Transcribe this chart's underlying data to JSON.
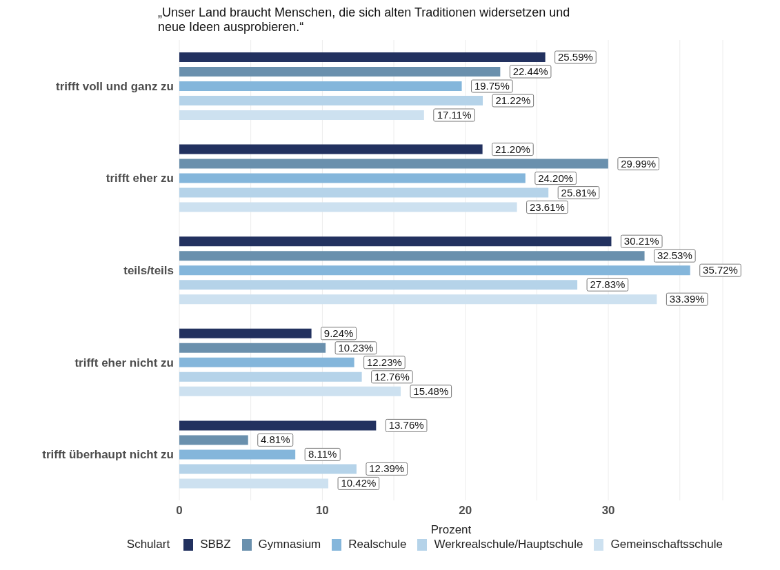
{
  "chart_data": {
    "type": "bar",
    "orientation": "horizontal",
    "title": "„Unser Land braucht Menschen, die sich alten Traditionen widersetzen und neue Ideen ausprobieren.“",
    "xlabel": "Prozent",
    "legend_title": "Schulart",
    "legend": "bottom",
    "grid": "x",
    "categories": [
      "trifft voll und ganz zu",
      "trifft eher zu",
      "teils/teils",
      "trifft eher nicht zu",
      "trifft überhaupt nicht zu"
    ],
    "xlim": [
      0,
      38
    ],
    "xticks": [
      0,
      {
        "value": 5,
        "label": null
      },
      10,
      {
        "value": 15,
        "label": null
      },
      20,
      {
        "value": 25,
        "label": null
      },
      30,
      {
        "value": 35,
        "label": null
      }
    ],
    "series": [
      {
        "name": "SBBZ",
        "color": "#22315f",
        "values": [
          25.59,
          21.2,
          30.21,
          9.24,
          13.76
        ],
        "value_labels": [
          "25.59%",
          "21.20%",
          "30.21%",
          "9.24%",
          "13.76%"
        ]
      },
      {
        "name": "Gymnasium",
        "color": "#6a90ad",
        "values": [
          22.44,
          29.99,
          32.53,
          10.23,
          4.81
        ],
        "value_labels": [
          "22.44%",
          "29.99%",
          "32.53%",
          "10.23%",
          "4.81%"
        ]
      },
      {
        "name": "Realschule",
        "color": "#84b6db",
        "values": [
          19.75,
          24.2,
          35.72,
          12.23,
          8.11
        ],
        "value_labels": [
          "19.75%",
          "24.20%",
          "35.72%",
          "12.23%",
          "8.11%"
        ]
      },
      {
        "name": "Werkrealschule/Hauptschule",
        "color": "#b5d3e9",
        "values": [
          21.22,
          25.81,
          27.83,
          12.76,
          12.39
        ],
        "value_labels": [
          "21.22%",
          "25.81%",
          "27.83%",
          "12.76%",
          "12.39%"
        ]
      },
      {
        "name": "Gemeinschaftsschule",
        "color": "#cde1f0",
        "values": [
          17.11,
          23.61,
          33.39,
          15.48,
          10.42
        ],
        "value_labels": [
          "17.11%",
          "23.61%",
          "33.39%",
          "15.48%",
          "10.42%"
        ]
      }
    ]
  }
}
